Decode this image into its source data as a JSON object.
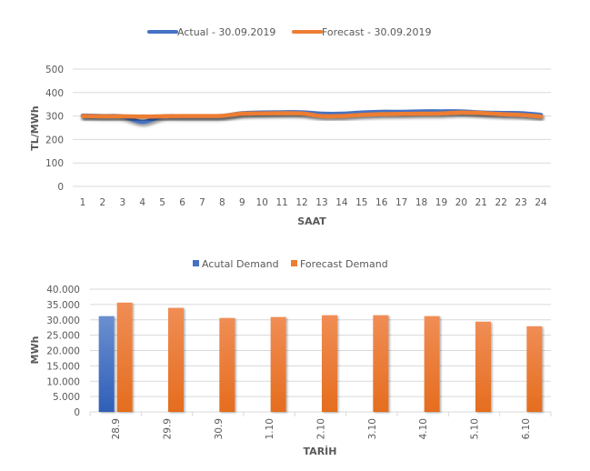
{
  "chart_data": [
    {
      "type": "line",
      "title": "",
      "xlabel": "SAAT",
      "ylabel": "TL/MWh",
      "ylim": [
        0,
        500
      ],
      "yticks": [
        "0",
        "100",
        "200",
        "300",
        "400",
        "500"
      ],
      "grid": true,
      "legend_position": "top",
      "x": [
        "1",
        "2",
        "3",
        "4",
        "5",
        "6",
        "7",
        "8",
        "9",
        "10",
        "11",
        "12",
        "13",
        "14",
        "15",
        "16",
        "17",
        "18",
        "19",
        "20",
        "21",
        "22",
        "23",
        "24"
      ],
      "series": [
        {
          "name": "Actual - 30.09.2019",
          "color": "#4472c4",
          "values": [
            302,
            300,
            298,
            275,
            298,
            299,
            299,
            300,
            312,
            315,
            316,
            316,
            310,
            310,
            315,
            318,
            318,
            320,
            320,
            320,
            315,
            313,
            312,
            305
          ]
        },
        {
          "name": "Forecast - 30.09.2019",
          "color": "#ed7d31",
          "values": [
            300,
            299,
            299,
            298,
            299,
            300,
            300,
            301,
            310,
            311,
            312,
            311,
            300,
            300,
            305,
            308,
            309,
            310,
            311,
            315,
            313,
            308,
            305,
            298
          ]
        }
      ]
    },
    {
      "type": "bar",
      "title": "",
      "xlabel": "TARİH",
      "ylabel": "MWh",
      "ylim": [
        0,
        40000
      ],
      "yticks": [
        "0",
        "5.000",
        "10.000",
        "15.000",
        "20.000",
        "25.000",
        "30.000",
        "35.000",
        "40.000"
      ],
      "grid": true,
      "legend_position": "top",
      "categories": [
        "28.9",
        "29.9",
        "30.9",
        "1.10",
        "2.10",
        "3.10",
        "4.10",
        "5.10",
        "6.10"
      ],
      "series": [
        {
          "name": "Acutal Demand",
          "color": "#4472c4",
          "values": [
            31200,
            null,
            null,
            null,
            null,
            null,
            null,
            null,
            null
          ]
        },
        {
          "name": "Forecast Demand",
          "color": "#ed7d31",
          "values": [
            35600,
            33900,
            30600,
            30900,
            31500,
            31500,
            31200,
            29400,
            27900
          ]
        }
      ]
    }
  ]
}
